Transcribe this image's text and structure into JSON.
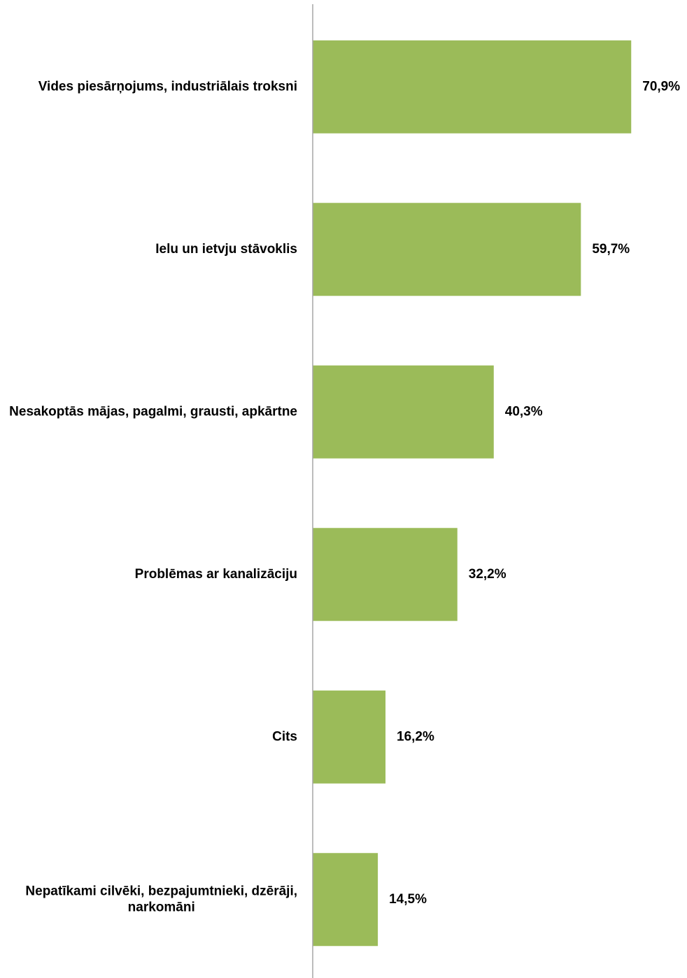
{
  "chart_data": {
    "type": "bar",
    "orientation": "horizontal",
    "categories": [
      [
        "Vides piesārņojums, industriālais troksni"
      ],
      [
        "Ielu un ietvju stāvoklis"
      ],
      [
        "Nesakoptās mājas, pagalmi, grausti, apkārtne"
      ],
      [
        "Problēmas ar kanalizāciju"
      ],
      [
        "Cits"
      ],
      [
        "Nepatīkami cilvēki, bezpajumtnieki, dzērāji,",
        "narkomāni"
      ]
    ],
    "values": [
      70.9,
      59.7,
      40.3,
      32.2,
      16.2,
      14.5
    ],
    "value_labels": [
      "70,9%",
      "59,7%",
      "40,3%",
      "32,2%",
      "16,2%",
      "14,5%"
    ],
    "xlim": [
      0,
      76
    ],
    "bar_color": "#9BBB59",
    "axis_color": "#a6a6a6",
    "grid": false,
    "legend": "none",
    "title": "",
    "xlabel": "",
    "ylabel": ""
  }
}
